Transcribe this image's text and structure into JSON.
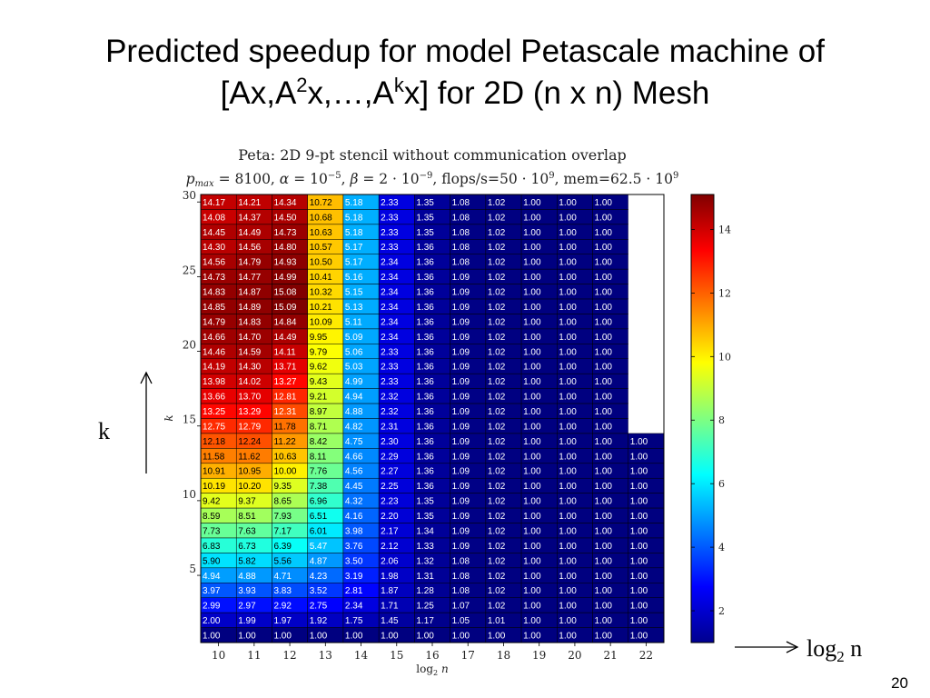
{
  "slide": {
    "title_line1": "Predicted speedup for model Petascale machine  of",
    "title_line2_a": "[Ax,A",
    "title_line2_sup1": "2",
    "title_line2_b": "x,…,A",
    "title_line2_sup2": "k",
    "title_line2_c": "x]  for 2D (n x n) Mesh",
    "k_label": "k",
    "log_label_main": "log",
    "log_label_sub": "2",
    "log_label_tail": " n",
    "page_number": "20"
  },
  "chart_data": {
    "type": "heatmap",
    "title": "Peta: 2D 9-pt stencil without communication overlap",
    "subtitle": "p_max = 8100, α = 10^−5, β = 2 · 10^−9, flops/s=50 · 10^9, mem=62.5 · 10^9",
    "xlabel": "log2 n",
    "ylabel": "k",
    "x_values": [
      10,
      11,
      12,
      13,
      14,
      15,
      16,
      17,
      18,
      19,
      20,
      21,
      22
    ],
    "y_values": [
      30,
      29,
      28,
      27,
      26,
      25,
      24,
      23,
      22,
      21,
      20,
      19,
      18,
      17,
      16,
      15,
      14,
      13,
      12,
      11,
      10,
      9,
      8,
      7,
      6,
      5,
      4,
      3,
      2,
      1
    ],
    "x_ticks": [
      10,
      11,
      12,
      13,
      14,
      15,
      16,
      17,
      18,
      19,
      20,
      21,
      22
    ],
    "y_ticks": [
      5,
      10,
      15,
      20,
      25,
      30
    ],
    "colorbar_ticks": [
      2,
      4,
      6,
      8,
      10,
      12,
      14
    ],
    "color_range": [
      1,
      15.1
    ],
    "colormap": "jet",
    "missing_color": "#ffffff",
    "values": [
      [
        14.17,
        14.21,
        14.34,
        10.72,
        5.18,
        2.33,
        1.35,
        1.08,
        1.02,
        1.0,
        1.0,
        1.0,
        null
      ],
      [
        14.08,
        14.37,
        14.5,
        10.68,
        5.18,
        2.33,
        1.35,
        1.08,
        1.02,
        1.0,
        1.0,
        1.0,
        null
      ],
      [
        14.45,
        14.49,
        14.73,
        10.63,
        5.18,
        2.33,
        1.35,
        1.08,
        1.02,
        1.0,
        1.0,
        1.0,
        null
      ],
      [
        14.3,
        14.56,
        14.8,
        10.57,
        5.17,
        2.33,
        1.36,
        1.08,
        1.02,
        1.0,
        1.0,
        1.0,
        null
      ],
      [
        14.56,
        14.79,
        14.93,
        10.5,
        5.17,
        2.34,
        1.36,
        1.08,
        1.02,
        1.0,
        1.0,
        1.0,
        null
      ],
      [
        14.73,
        14.77,
        14.99,
        10.41,
        5.16,
        2.34,
        1.36,
        1.09,
        1.02,
        1.0,
        1.0,
        1.0,
        null
      ],
      [
        14.83,
        14.87,
        15.08,
        10.32,
        5.15,
        2.34,
        1.36,
        1.09,
        1.02,
        1.0,
        1.0,
        1.0,
        null
      ],
      [
        14.85,
        14.89,
        15.09,
        10.21,
        5.13,
        2.34,
        1.36,
        1.09,
        1.02,
        1.0,
        1.0,
        1.0,
        null
      ],
      [
        14.79,
        14.83,
        14.84,
        10.09,
        5.11,
        2.34,
        1.36,
        1.09,
        1.02,
        1.0,
        1.0,
        1.0,
        null
      ],
      [
        14.66,
        14.7,
        14.49,
        9.95,
        5.09,
        2.34,
        1.36,
        1.09,
        1.02,
        1.0,
        1.0,
        1.0,
        null
      ],
      [
        14.46,
        14.59,
        14.11,
        9.79,
        5.06,
        2.33,
        1.36,
        1.09,
        1.02,
        1.0,
        1.0,
        1.0,
        null
      ],
      [
        14.19,
        14.3,
        13.71,
        9.62,
        5.03,
        2.33,
        1.36,
        1.09,
        1.02,
        1.0,
        1.0,
        1.0,
        null
      ],
      [
        13.98,
        14.02,
        13.27,
        9.43,
        4.99,
        2.33,
        1.36,
        1.09,
        1.02,
        1.0,
        1.0,
        1.0,
        null
      ],
      [
        13.66,
        13.7,
        12.81,
        9.21,
        4.94,
        2.32,
        1.36,
        1.09,
        1.02,
        1.0,
        1.0,
        1.0,
        null
      ],
      [
        13.25,
        13.29,
        12.31,
        8.97,
        4.88,
        2.32,
        1.36,
        1.09,
        1.02,
        1.0,
        1.0,
        1.0,
        null
      ],
      [
        12.75,
        12.79,
        11.78,
        8.71,
        4.82,
        2.31,
        1.36,
        1.09,
        1.02,
        1.0,
        1.0,
        1.0,
        null
      ],
      [
        12.18,
        12.24,
        11.22,
        8.42,
        4.75,
        2.3,
        1.36,
        1.09,
        1.02,
        1.0,
        1.0,
        1.0,
        1.0
      ],
      [
        11.58,
        11.62,
        10.63,
        8.11,
        4.66,
        2.29,
        1.36,
        1.09,
        1.02,
        1.0,
        1.0,
        1.0,
        1.0
      ],
      [
        10.91,
        10.95,
        10.0,
        7.76,
        4.56,
        2.27,
        1.36,
        1.09,
        1.02,
        1.0,
        1.0,
        1.0,
        1.0
      ],
      [
        10.19,
        10.2,
        9.35,
        7.38,
        4.45,
        2.25,
        1.36,
        1.09,
        1.02,
        1.0,
        1.0,
        1.0,
        1.0
      ],
      [
        9.42,
        9.37,
        8.65,
        6.96,
        4.32,
        2.23,
        1.35,
        1.09,
        1.02,
        1.0,
        1.0,
        1.0,
        1.0
      ],
      [
        8.59,
        8.51,
        7.93,
        6.51,
        4.16,
        2.2,
        1.35,
        1.09,
        1.02,
        1.0,
        1.0,
        1.0,
        1.0
      ],
      [
        7.73,
        7.63,
        7.17,
        6.01,
        3.98,
        2.17,
        1.34,
        1.09,
        1.02,
        1.0,
        1.0,
        1.0,
        1.0
      ],
      [
        6.83,
        6.73,
        6.39,
        5.47,
        3.76,
        2.12,
        1.33,
        1.09,
        1.02,
        1.0,
        1.0,
        1.0,
        1.0
      ],
      [
        5.9,
        5.82,
        5.56,
        4.87,
        3.5,
        2.06,
        1.32,
        1.08,
        1.02,
        1.0,
        1.0,
        1.0,
        1.0
      ],
      [
        4.94,
        4.88,
        4.71,
        4.23,
        3.19,
        1.98,
        1.31,
        1.08,
        1.02,
        1.0,
        1.0,
        1.0,
        1.0
      ],
      [
        3.97,
        3.93,
        3.83,
        3.52,
        2.81,
        1.87,
        1.28,
        1.08,
        1.02,
        1.0,
        1.0,
        1.0,
        1.0
      ],
      [
        2.99,
        2.97,
        2.92,
        2.75,
        2.34,
        1.71,
        1.25,
        1.07,
        1.02,
        1.0,
        1.0,
        1.0,
        1.0
      ],
      [
        2.0,
        1.99,
        1.97,
        1.92,
        1.75,
        1.45,
        1.17,
        1.05,
        1.01,
        1.0,
        1.0,
        1.0,
        1.0
      ],
      [
        1.0,
        1.0,
        1.0,
        1.0,
        1.0,
        1.0,
        1.0,
        1.0,
        1.0,
        1.0,
        1.0,
        1.0,
        1.0
      ]
    ]
  }
}
